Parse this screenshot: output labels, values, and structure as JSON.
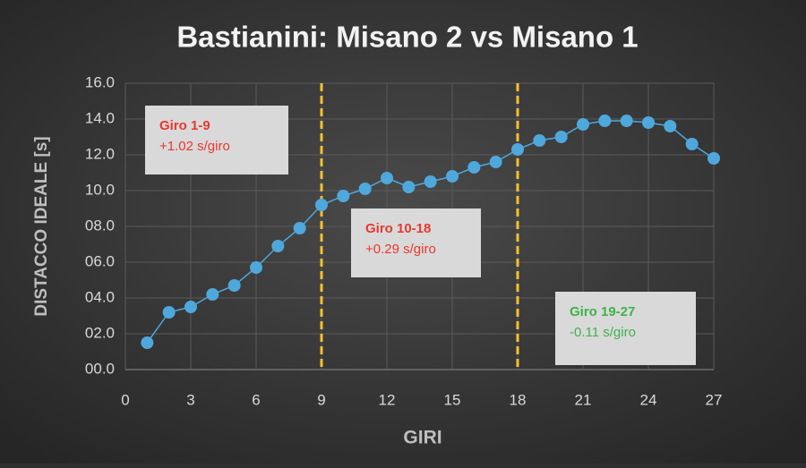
{
  "chart_data": {
    "type": "line",
    "title": "Bastianini: Misano 2 vs Misano 1",
    "xlabel": "GIRI",
    "ylabel": "DISTACCO IDEALE [s]",
    "x": [
      1,
      2,
      3,
      4,
      5,
      6,
      7,
      8,
      9,
      10,
      11,
      12,
      13,
      14,
      15,
      16,
      17,
      18,
      19,
      20,
      21,
      22,
      23,
      24,
      25,
      26,
      27
    ],
    "series": [
      {
        "name": "Misano 2 vs Misano 1",
        "color": "#4fa8dc",
        "values": [
          1.5,
          3.2,
          3.5,
          4.2,
          4.7,
          5.7,
          6.9,
          7.9,
          9.2,
          9.7,
          10.1,
          10.7,
          10.2,
          10.5,
          10.8,
          11.3,
          11.6,
          12.3,
          12.8,
          13.0,
          13.7,
          13.9,
          13.9,
          13.8,
          13.6,
          12.6,
          11.8
        ]
      }
    ],
    "xlim": [
      0,
      27
    ],
    "xticks": [
      0,
      3,
      6,
      9,
      12,
      15,
      18,
      21,
      24,
      27
    ],
    "ylim": [
      0,
      16
    ],
    "yticks": [
      {
        "value": 0,
        "label": "00.0"
      },
      {
        "value": 2,
        "label": "02.0"
      },
      {
        "value": 4,
        "label": "04.0"
      },
      {
        "value": 6,
        "label": "06.0"
      },
      {
        "value": 8,
        "label": "08.0"
      },
      {
        "value": 10,
        "label": "10.0"
      },
      {
        "value": 12,
        "label": "12.0"
      },
      {
        "value": 14,
        "label": "14.0"
      },
      {
        "value": 16,
        "label": "16.0"
      }
    ],
    "grid": true,
    "vlines": [
      9,
      18
    ],
    "vline_color": "#f2c12e",
    "annotations": [
      {
        "title": "Giro 1-9",
        "text": "+1.02 s/giro",
        "color": "#e8382f"
      },
      {
        "title": "Giro 10-18",
        "text": "+0.29 s/giro",
        "color": "#e8382f"
      },
      {
        "title": "Giro 19-27",
        "text": "-0.11 s/giro",
        "color": "#3fb24a"
      }
    ]
  }
}
